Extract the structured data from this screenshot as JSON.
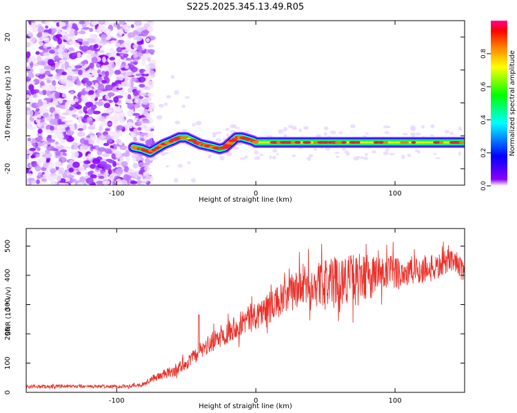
{
  "title": "S225.2025.345.13.49.R05",
  "chart_data": [
    {
      "type": "heatmap",
      "xlabel": "Height of straight line (km)",
      "ylabel": "Frequency (Hz)",
      "xlim": [
        -165,
        150
      ],
      "ylim": [
        -25,
        25
      ],
      "x_ticks": [
        -100,
        0,
        100
      ],
      "y_ticks": [
        -20,
        -10,
        0,
        10,
        20
      ],
      "colorbar": {
        "label": "Normalized spectral amplitude",
        "range": [
          0,
          1
        ],
        "ticks": [
          "0.0",
          "0.2",
          "0.4",
          "0.6",
          "0.8"
        ],
        "colors": [
          "#ffffff",
          "#8a00ff",
          "#0000ff",
          "#00ffff",
          "#00ff00",
          "#ffff00",
          "#ff8000",
          "#ff0000",
          "#ff0090"
        ]
      },
      "noise_region_x": [
        -165,
        -80
      ],
      "ridge": {
        "x": [
          -88,
          -82,
          -76,
          -72,
          -66,
          -60,
          -55,
          -50,
          -45,
          -40,
          -35,
          -30,
          -26,
          -22,
          -18,
          -14,
          -10,
          -6,
          -2,
          0,
          20,
          40,
          60,
          80,
          100,
          120,
          140,
          150
        ],
        "y": [
          -13.5,
          -14,
          -15,
          -14,
          -12.5,
          -11.5,
          -10.5,
          -10.5,
          -11.5,
          -12.5,
          -13,
          -13.5,
          -14,
          -13.5,
          -12,
          -10.5,
          -10.5,
          -11,
          -11.5,
          -12,
          -12,
          -12,
          -12,
          -12,
          -12,
          -12,
          -12,
          -12
        ]
      }
    },
    {
      "type": "line",
      "xlabel": "Height of straight line (km)",
      "ylabel": "SNR (10 * v/v)",
      "xlim": [
        -165,
        150
      ],
      "ylim": [
        0,
        560
      ],
      "x_ticks": [
        -100,
        0,
        100
      ],
      "y_ticks": [
        0,
        100,
        200,
        300,
        400,
        500
      ],
      "color": "#e8312a",
      "series": [
        {
          "x": [
            -165,
            -140,
            -120,
            -100,
            -90,
            -80,
            -75,
            -70,
            -60,
            -50,
            -42,
            -41,
            -40,
            -30,
            -20,
            -10,
            0,
            10,
            20,
            30,
            40,
            50,
            60,
            70,
            80,
            90,
            100,
            110,
            120,
            130,
            140,
            145,
            150
          ],
          "y": [
            20,
            20,
            20,
            20,
            22,
            28,
            45,
            55,
            70,
            100,
            130,
            265,
            140,
            175,
            210,
            240,
            265,
            290,
            320,
            355,
            365,
            375,
            385,
            390,
            395,
            400,
            410,
            410,
            420,
            425,
            455,
            445,
            395
          ],
          "noise_amplitude": [
            6,
            6,
            6,
            6,
            6,
            8,
            12,
            15,
            20,
            25,
            25,
            5,
            30,
            35,
            40,
            45,
            50,
            55,
            60,
            70,
            75,
            80,
            85,
            85,
            80,
            70,
            60,
            55,
            50,
            45,
            40,
            35,
            40
          ]
        }
      ]
    }
  ]
}
